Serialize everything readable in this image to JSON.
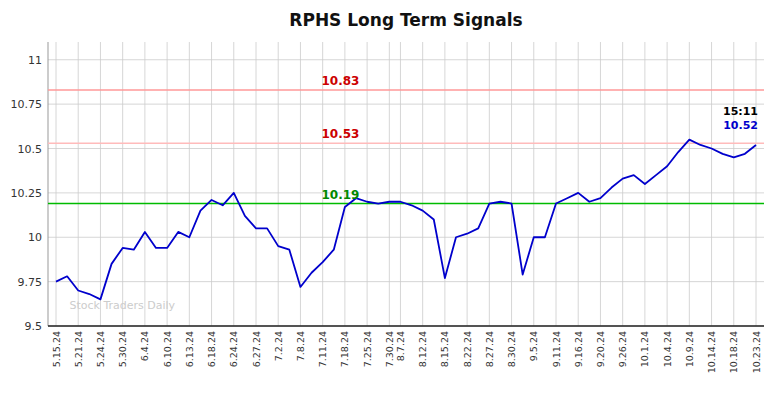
{
  "chart_data": {
    "type": "line",
    "title": "RPHS Long Term Signals",
    "background_color": "#ffffff",
    "grid": true,
    "grid_color": "#cccccc",
    "color": "#0000cc",
    "categories": [
      "5.15.24",
      null,
      "5.21.24",
      null,
      "5.24.24",
      null,
      "5.30.24",
      null,
      "6.4.24",
      null,
      "6.10.24",
      null,
      "6.13.24",
      null,
      "6.18.24",
      null,
      "6.24.24",
      null,
      "6.27.24",
      null,
      "7.2.24",
      null,
      "7.8.24",
      null,
      "7.11.24",
      null,
      "7.18.24",
      null,
      "7.25.24",
      null,
      "7.30.24",
      "8.7.24",
      null,
      "8.12.24",
      null,
      "8.15.24",
      null,
      "8.22.24",
      null,
      "8.27.24",
      null,
      "8.30.24",
      null,
      "9.5.24",
      null,
      "9.11.24",
      null,
      "9.16.24",
      null,
      "9.20.24",
      null,
      "9.26.24",
      null,
      "10.1.24",
      null,
      "10.4.24",
      null,
      "10.9.24",
      null,
      "10.14.24",
      null,
      "10.18.24",
      null,
      "10.23.24"
    ],
    "values": [
      9.75,
      9.78,
      9.7,
      9.68,
      9.65,
      9.85,
      9.94,
      9.93,
      10.03,
      9.94,
      9.94,
      10.03,
      10.0,
      10.15,
      10.21,
      10.18,
      10.25,
      10.12,
      10.05,
      10.05,
      9.95,
      9.93,
      9.72,
      9.8,
      9.86,
      9.93,
      10.17,
      10.22,
      10.2,
      10.19,
      10.2,
      10.2,
      10.18,
      10.15,
      10.1,
      9.77,
      10.0,
      10.02,
      10.05,
      10.19,
      10.2,
      10.19,
      9.79,
      10.0,
      10.0,
      10.19,
      10.22,
      10.25,
      10.2,
      10.22,
      10.28,
      10.33,
      10.35,
      10.3,
      10.35,
      10.4,
      10.48,
      10.55,
      10.52,
      10.5,
      10.47,
      10.45,
      10.47,
      10.52
    ],
    "ylim": [
      9.5,
      11.1
    ],
    "yticks": [
      9.5,
      9.75,
      10,
      10.25,
      10.5,
      10.75,
      11
    ],
    "reference_lines": [
      {
        "value": 10.83,
        "label": "10.83",
        "color": "#ff9999",
        "label_color": "#cc0000"
      },
      {
        "value": 10.53,
        "label": "10.53",
        "color": "#ffbbbb",
        "label_color": "#cc0000"
      },
      {
        "value": 10.19,
        "label": "10.19",
        "color": "#00bb00",
        "label_color": "#008800"
      }
    ],
    "annotations": [
      {
        "text": "15:11",
        "color": "#000000"
      },
      {
        "text": "10.52",
        "color": "#0000cc"
      }
    ],
    "watermark": {
      "text": "Stock Traders Daily",
      "color": "#cccccc"
    }
  }
}
